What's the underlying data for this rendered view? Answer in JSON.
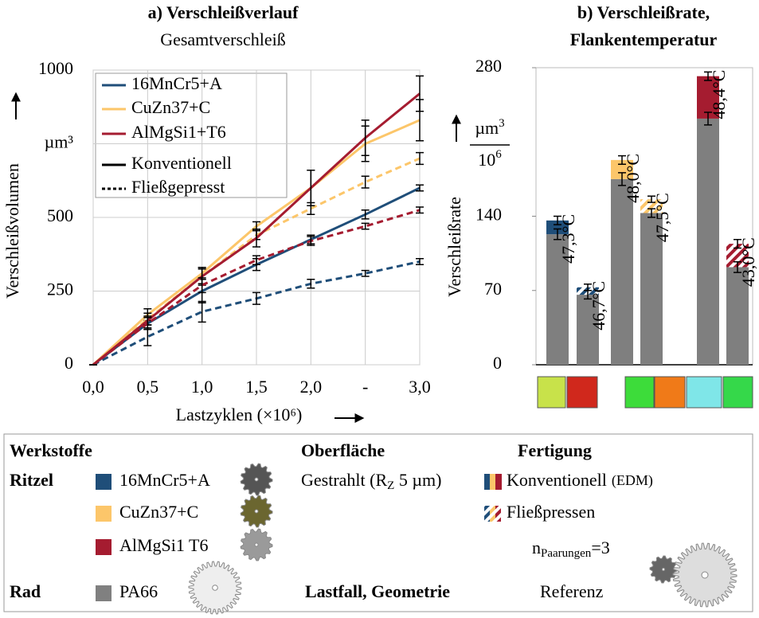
{
  "chart_data": [
    {
      "type": "line",
      "title": "a) Verschleißverlauf",
      "subtitle": "Gesamtverschleiß",
      "y_label": "Verschleißvolumen",
      "x_label": "Lastzyklen (×10⁶)",
      "x": [
        0,
        0.5,
        1,
        1.5,
        2,
        2.5,
        3
      ],
      "xlim": [
        0,
        3
      ],
      "xticks": [
        {
          "value": 0,
          "label": "0,0"
        },
        {
          "value": 0.5,
          "label": "0,5"
        },
        {
          "value": 1,
          "label": "1,0"
        },
        {
          "value": 1.5,
          "label": "1,5"
        },
        {
          "value": 2,
          "label": "2,0"
        },
        {
          "value": 2.5,
          "label": "-"
        },
        {
          "value": 3,
          "label": "3,0"
        }
      ],
      "ylim": [
        0,
        1000
      ],
      "yticks": [
        0,
        250,
        500,
        {
          "value": 750,
          "label": "µm³"
        },
        1000
      ],
      "grid": true,
      "legend_colors": [
        {
          "name": "16MnCr5+A",
          "color": "#1f4e79"
        },
        {
          "name": "CuZn37+C",
          "color": "#fcc66a"
        },
        {
          "name": "AlMgSi1+T6",
          "color": "#a51c30"
        }
      ],
      "legend_styles": [
        {
          "name": "Konventionell",
          "dash": false
        },
        {
          "name": "Fließgepresst",
          "dash": true
        }
      ],
      "series": [
        {
          "color": "#1f4e79",
          "dash": false,
          "values": [
            0,
            140,
            250,
            340,
            425,
            510,
            600
          ],
          "errors": [
            0,
            20,
            40,
            20,
            15,
            15,
            10
          ]
        },
        {
          "color": "#1f4e79",
          "dash": true,
          "values": [
            0,
            95,
            180,
            225,
            275,
            310,
            350
          ],
          "errors": [
            0,
            30,
            35,
            20,
            15,
            10,
            10
          ]
        },
        {
          "color": "#fcc66a",
          "dash": false,
          "values": [
            0,
            170,
            310,
            470,
            600,
            750,
            830
          ],
          "errors": [
            0,
            20,
            20,
            15,
            60,
            60,
            70
          ]
        },
        {
          "color": "#fcc66a",
          "dash": true,
          "values": [
            0,
            155,
            300,
            440,
            530,
            620,
            700
          ],
          "errors": [
            0,
            20,
            25,
            15,
            20,
            20,
            20
          ]
        },
        {
          "color": "#a51c30",
          "dash": false,
          "values": [
            0,
            150,
            300,
            430,
            600,
            770,
            920
          ],
          "errors": [
            0,
            15,
            30,
            30,
            60,
            60,
            60
          ]
        },
        {
          "color": "#a51c30",
          "dash": true,
          "values": [
            0,
            140,
            270,
            355,
            420,
            470,
            525
          ],
          "errors": [
            0,
            20,
            25,
            15,
            15,
            10,
            10
          ]
        }
      ]
    },
    {
      "type": "stacked_bar",
      "title": [
        "b) Verschleißrate,",
        "Flankentemperatur"
      ],
      "y_label": "Verschleißrate",
      "y_unit": {
        "num": "µm",
        "num_exp": "3",
        "den": "10",
        "den_exp": "6"
      },
      "ylim": [
        0,
        280
      ],
      "yticks": [
        0,
        70,
        140,
        280
      ],
      "series": [
        {
          "color": "#7f7f7f",
          "values": [
            123,
            66,
            175,
            143,
            232,
            92
          ],
          "errors": [
            5,
            4,
            6,
            4,
            6,
            5
          ]
        },
        {
          "colors": [
            "#1f4e79",
            "#1f4e79",
            "#fcc66a",
            "#fcc66a",
            "#a51c30",
            "#a51c30"
          ],
          "hatched": [
            false,
            true,
            false,
            true,
            false,
            true
          ],
          "values": [
            13,
            7,
            18,
            13,
            40,
            22
          ],
          "errors": [
            4,
            3,
            4,
            3,
            4,
            4
          ]
        }
      ],
      "annotations": [
        "47,3°C",
        "46,7°C",
        "48,0°C",
        "47,5°C",
        "48,4°C",
        "43,0°C"
      ]
    }
  ],
  "legend_panel": {
    "headings": [
      "Werkstoffe",
      "Oberfläche",
      "Fertigung"
    ],
    "ritzel": "Ritzel",
    "rad": "Rad",
    "materials": [
      {
        "name": "16MnCr5+A",
        "color": "#1f4e79",
        "gear": "#555"
      },
      {
        "name": "CuZn37+C",
        "color": "#fcc66a",
        "gear": "#6b6630"
      },
      {
        "name": "AlMgSi1 T6",
        "color": "#a51c30",
        "gear": "#9a9a9a"
      }
    ],
    "wheel": {
      "name": "PA66",
      "color": "#808080"
    },
    "surface": {
      "text": "Gestrahlt (R",
      "sub": "Z",
      "rest": " 5 µm)"
    },
    "manufacturing": [
      {
        "name": "Konventionell",
        "note": "(EDM)"
      },
      {
        "name": "Fließpressen"
      }
    ],
    "pairs": {
      "n": "n",
      "sub": "Paarungen",
      "rest": "=3"
    },
    "load": {
      "label": "Lastfall, Geometrie",
      "value": "Referenz"
    }
  }
}
